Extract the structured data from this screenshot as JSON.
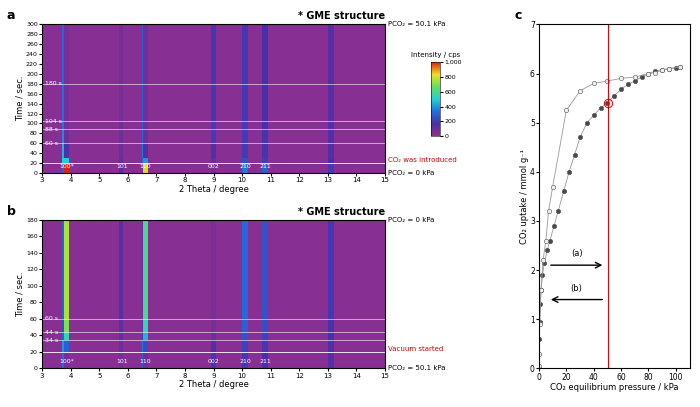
{
  "chart_data": [
    {
      "type": "heatmap",
      "panel": "a",
      "title": "* GME structure",
      "x_label": "2 Theta / degree",
      "y_label": "Time / sec.",
      "xlim": [
        3,
        15
      ],
      "xticks": [
        3,
        4,
        5,
        6,
        7,
        8,
        9,
        10,
        11,
        12,
        13,
        14,
        15
      ],
      "ylim": [
        0,
        300
      ],
      "yticks": [
        0,
        20,
        40,
        60,
        80,
        100,
        120,
        140,
        160,
        180,
        200,
        220,
        240,
        260,
        280,
        300
      ],
      "x_edges": [
        3,
        3.7,
        3.78,
        3.95,
        5.7,
        5.85,
        6.5,
        6.55,
        6.7,
        8.9,
        9.1,
        10.0,
        10.2,
        10.7,
        10.9,
        13.0,
        13.2,
        15
      ],
      "y_edges": [
        0,
        20,
        30,
        60,
        88,
        104,
        180,
        300
      ],
      "cells": [
        [
          40,
          300,
          1000,
          40,
          150,
          40,
          100,
          800,
          40,
          80,
          40,
          350,
          40,
          300,
          40,
          200,
          40
        ],
        [
          40,
          500,
          500,
          40,
          120,
          40,
          300,
          400,
          40,
          120,
          40,
          250,
          40,
          200,
          40,
          170,
          40
        ],
        [
          40,
          450,
          150,
          40,
          100,
          40,
          350,
          150,
          40,
          150,
          40,
          200,
          40,
          180,
          40,
          150,
          40
        ],
        [
          40,
          380,
          90,
          40,
          90,
          40,
          320,
          100,
          40,
          200,
          40,
          200,
          40,
          180,
          40,
          150,
          40
        ],
        [
          40,
          350,
          80,
          40,
          90,
          40,
          300,
          90,
          40,
          200,
          40,
          200,
          40,
          170,
          40,
          150,
          40
        ],
        [
          40,
          330,
          80,
          40,
          80,
          40,
          300,
          90,
          40,
          190,
          40,
          190,
          40,
          170,
          40,
          140,
          40
        ],
        [
          40,
          320,
          70,
          40,
          80,
          40,
          290,
          90,
          40,
          190,
          40,
          190,
          40,
          170,
          40,
          140,
          40
        ]
      ],
      "colorbar": {
        "label": "Intensity / cps",
        "range": [
          0,
          1000
        ],
        "ticks": [
          0,
          200,
          400,
          600,
          800,
          {
            "value": 1000,
            "label": "1,000"
          }
        ]
      },
      "peak_labels": [
        {
          "text": "100*",
          "x": 3.85
        },
        {
          "text": "101",
          "x": 5.8
        },
        {
          "text": "110",
          "x": 6.6
        },
        {
          "text": "002",
          "x": 9.0
        },
        {
          "text": "210",
          "x": 10.1
        },
        {
          "text": "211",
          "x": 10.8
        }
      ],
      "time_marks": [
        {
          "value": 60,
          "label": "60 s"
        },
        {
          "value": 88,
          "label": "88 s"
        },
        {
          "value": 104,
          "label": "104 s"
        },
        {
          "value": 180,
          "label": "180 s"
        }
      ],
      "event": {
        "text": "CO₂ was introduced",
        "time": 20
      },
      "pressure_top": "PCO₂ = 50.1 kPa",
      "pressure_bottom": "PCO₂ = 0 kPa"
    },
    {
      "type": "heatmap",
      "panel": "b",
      "title": "* GME structure",
      "x_label": "2 Theta / degree",
      "y_label": "Time / sec.",
      "xlim": [
        3,
        15
      ],
      "xticks": [
        3,
        4,
        5,
        6,
        7,
        8,
        9,
        10,
        11,
        12,
        13,
        14,
        15
      ],
      "ylim": [
        0,
        180
      ],
      "yticks": [
        0,
        20,
        40,
        60,
        80,
        100,
        120,
        140,
        160,
        180
      ],
      "x_edges": [
        3,
        3.7,
        3.78,
        3.95,
        5.7,
        5.85,
        6.5,
        6.55,
        6.7,
        8.9,
        9.1,
        10.0,
        10.2,
        10.7,
        10.9,
        13.0,
        13.2,
        15
      ],
      "y_edges": [
        0,
        20,
        34,
        44,
        60,
        180
      ],
      "cells": [
        [
          40,
          330,
          80,
          40,
          80,
          40,
          300,
          90,
          40,
          190,
          40,
          190,
          40,
          170,
          40,
          140,
          40
        ],
        [
          40,
          400,
          300,
          40,
          100,
          40,
          350,
          250,
          40,
          150,
          40,
          220,
          40,
          190,
          40,
          150,
          40
        ],
        [
          40,
          300,
          550,
          40,
          120,
          40,
          200,
          450,
          40,
          100,
          40,
          260,
          40,
          220,
          40,
          170,
          40
        ],
        [
          40,
          250,
          700,
          40,
          130,
          40,
          120,
          550,
          40,
          80,
          40,
          300,
          40,
          250,
          40,
          180,
          40
        ],
        [
          40,
          300,
          750,
          40,
          140,
          40,
          100,
          600,
          40,
          70,
          40,
          320,
          40,
          260,
          40,
          190,
          40
        ]
      ],
      "color_range": [
        0,
        1000
      ],
      "peak_labels": [
        {
          "text": "100*",
          "x": 3.85
        },
        {
          "text": "101",
          "x": 5.8
        },
        {
          "text": "110",
          "x": 6.6
        },
        {
          "text": "002",
          "x": 9.0
        },
        {
          "text": "210",
          "x": 10.1
        },
        {
          "text": "211",
          "x": 10.8
        }
      ],
      "time_marks": [
        {
          "value": 34,
          "label": "34 s"
        },
        {
          "value": 44,
          "label": "44 s"
        },
        {
          "value": 60,
          "label": "60 s"
        }
      ],
      "event": {
        "text": "Vacuum started",
        "time": 20
      },
      "pressure_top": "PCO₂ = 0 kPa",
      "pressure_bottom": "PCO₂ = 50.1 kPa"
    },
    {
      "type": "line",
      "panel": "c",
      "x_label": "CO₂ equilibrium pressure / kPa",
      "y_label": "CO₂ uptake / mmol g⁻¹",
      "xlim": [
        0,
        110
      ],
      "xticks": [
        0,
        20,
        40,
        60,
        80,
        100
      ],
      "ylim": [
        0,
        7
      ],
      "yticks": [
        0,
        1,
        2,
        3,
        4,
        5,
        6,
        7
      ],
      "series": [
        {
          "name": "(a)",
          "color": "#4a4a4a",
          "marker": "o",
          "x": [
            0,
            0.3,
            0.6,
            1,
            1.5,
            2.5,
            4,
            6,
            8,
            11,
            14,
            18,
            22,
            26,
            30,
            35,
            40,
            45,
            50,
            55,
            60,
            65,
            70,
            75,
            80,
            85,
            90,
            95,
            100,
            103
          ],
          "values": [
            0,
            0.6,
            0.95,
            1.3,
            1.6,
            1.9,
            2.15,
            2.4,
            2.6,
            2.9,
            3.2,
            3.6,
            4.0,
            4.35,
            4.7,
            5.0,
            5.15,
            5.3,
            5.4,
            5.55,
            5.68,
            5.78,
            5.85,
            5.93,
            6.0,
            6.05,
            6.08,
            6.1,
            6.12,
            6.13
          ]
        },
        {
          "name": "(b)",
          "color": "#eeeeee",
          "marker": "o",
          "x": [
            103,
            95,
            90,
            85,
            80,
            70,
            60,
            50,
            40,
            30,
            20,
            10,
            7,
            5,
            3,
            1.5,
            0.5,
            0.1,
            0.02
          ],
          "values": [
            6.13,
            6.1,
            6.07,
            6.02,
            6.0,
            5.93,
            5.9,
            5.85,
            5.8,
            5.65,
            5.25,
            3.7,
            3.2,
            2.6,
            2.2,
            1.6,
            0.9,
            0.3,
            0.05
          ]
        }
      ],
      "vline": {
        "x": 50.1,
        "color": "#e00000"
      },
      "highlight": {
        "x": 50.1,
        "y": 5.4,
        "color": "#e00000"
      }
    }
  ]
}
